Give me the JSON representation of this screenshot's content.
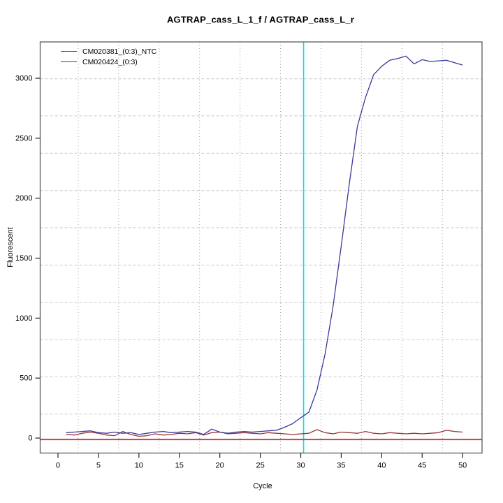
{
  "title": "AGTRAP_cass_L_1_f / AGTRAP_cass_L_r",
  "chart_data": {
    "type": "line",
    "title": "AGTRAP_cass_L_1_f / AGTRAP_cass_L_r",
    "xlabel": "Cycle",
    "ylabel": "Fluorescent",
    "x_ticks": [
      0,
      5,
      10,
      15,
      20,
      25,
      30,
      35,
      40,
      45,
      50
    ],
    "y_ticks": [
      0,
      500,
      1000,
      1500,
      2000,
      2500,
      3000
    ],
    "xlim": [
      -2.2,
      52.4
    ],
    "ylim": [
      -125,
      3303
    ],
    "grid": {
      "on": true,
      "vertical_x": [
        2.5,
        7.5,
        12.5,
        17.5,
        22.5,
        27.5,
        32.5,
        37.5,
        42.5,
        47.5
      ],
      "horizontal_y": [
        200,
        511,
        821,
        1132,
        1443,
        1754,
        2064,
        2375,
        2686,
        2996
      ]
    },
    "threshold_line": {
      "y": 0,
      "color": "#c14f4f"
    },
    "ct_marker_line": {
      "x": 30.35,
      "color": "#00e5e5"
    },
    "legend_position": "top-left",
    "x": [
      1,
      2,
      3,
      4,
      5,
      6,
      7,
      8,
      9,
      10,
      11,
      12,
      13,
      14,
      15,
      16,
      17,
      18,
      19,
      20,
      21,
      22,
      23,
      24,
      25,
      26,
      27,
      28,
      29,
      30,
      31,
      32,
      33,
      34,
      35,
      36,
      37,
      38,
      39,
      40,
      41,
      42,
      43,
      44,
      45,
      46,
      47,
      48,
      49,
      50
    ],
    "series": [
      {
        "name": "CM020381_(0:3)_NTC",
        "color": "#993333",
        "values": [
          30,
          25,
          40,
          50,
          40,
          25,
          20,
          55,
          30,
          15,
          20,
          35,
          25,
          30,
          40,
          35,
          45,
          25,
          45,
          50,
          35,
          40,
          45,
          40,
          35,
          45,
          40,
          35,
          30,
          35,
          40,
          70,
          45,
          35,
          50,
          45,
          40,
          55,
          40,
          35,
          45,
          40,
          35,
          40,
          35,
          40,
          45,
          65,
          55,
          50
        ]
      },
      {
        "name": "CM020424_(0:3)",
        "color": "#3939a0",
        "values": [
          45,
          50,
          55,
          60,
          45,
          40,
          50,
          40,
          45,
          30,
          40,
          50,
          55,
          45,
          50,
          55,
          50,
          30,
          75,
          50,
          40,
          50,
          55,
          50,
          55,
          60,
          65,
          90,
          120,
          170,
          215,
          400,
          700,
          1100,
          1600,
          2120,
          2600,
          2840,
          3030,
          3100,
          3150,
          3165,
          3185,
          3120,
          3155,
          3140,
          3145,
          3150,
          3130,
          3110
        ]
      }
    ]
  }
}
